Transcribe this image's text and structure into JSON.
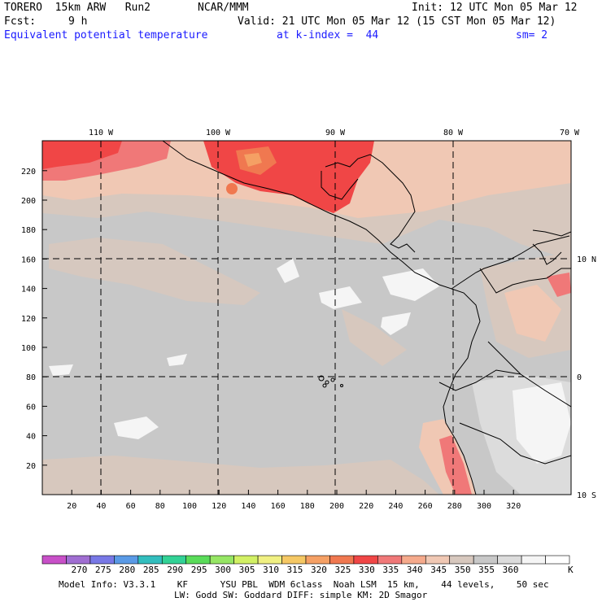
{
  "header": {
    "model": "TORERO  15km ARW   Run2",
    "center": "NCAR/MMM",
    "init": "Init: 12 UTC Mon 05 Mar 12",
    "fcst_label": "Fcst:",
    "fcst_value": "9 h",
    "valid": "Valid: 21 UTC Mon 05 Mar 12 (15 CST Mon 05 Mar 12)",
    "field": "Equivalent potential temperature",
    "level": "at k-index =  44",
    "smoothing": "sm= 2"
  },
  "map": {
    "lon_labels": [
      "110 W",
      "100 W",
      "90 W",
      "80 W",
      "70 W"
    ],
    "lat_labels": [
      "10 N",
      "0",
      "10 S"
    ],
    "y_ticks": [
      "20",
      "40",
      "60",
      "80",
      "100",
      "120",
      "140",
      "160",
      "180",
      "200",
      "220"
    ],
    "x_ticks": [
      "20",
      "40",
      "60",
      "80",
      "100",
      "120",
      "140",
      "160",
      "180",
      "200",
      "220",
      "240",
      "260",
      "280",
      "300",
      "320"
    ]
  },
  "legend": {
    "values": [
      "270",
      "275",
      "280",
      "285",
      "290",
      "295",
      "300",
      "305",
      "310",
      "315",
      "320",
      "325",
      "330",
      "335",
      "340",
      "345",
      "350",
      "355",
      "360"
    ],
    "unit": "K",
    "colors": [
      "#c850c8",
      "#a06ed2",
      "#7878e6",
      "#5a9ae6",
      "#32bebe",
      "#32d296",
      "#5adc5a",
      "#96e664",
      "#d2f064",
      "#f0f082",
      "#f5c864",
      "#f5a064",
      "#f07850",
      "#f04646",
      "#f07878",
      "#f5aa8c",
      "#f0c8b4",
      "#d7c8be",
      "#c8c8c8",
      "#dcdcdc",
      "#f5f5f5",
      "#ffffff"
    ]
  },
  "footer": {
    "line1": "Model Info: V3.3.1    KF      YSU PBL  WDM 6class  Noah LSM  15 km,    44 levels,    50 sec",
    "line2": "LW: Godd SW: Goddard DIFF: simple KM: 2D Smagor"
  }
}
